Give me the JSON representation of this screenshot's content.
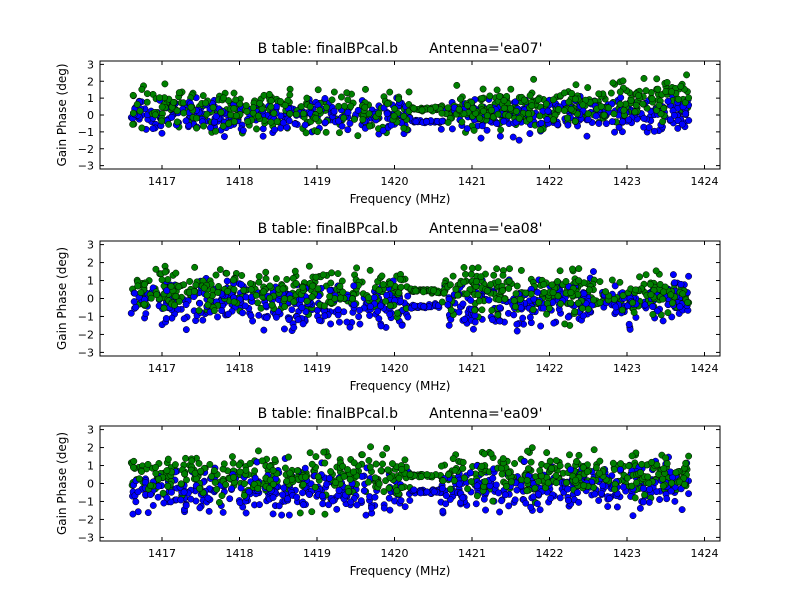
{
  "figure": {
    "colors": {
      "blue": "#0000ff",
      "green": "#008000",
      "edge": "#000000"
    }
  },
  "chart_data": [
    {
      "type": "scatter",
      "title": "B table: finalBPcal.b       Antenna='ea07'",
      "xlabel": "Frequency (MHz)",
      "ylabel": "Gain Phase (deg)",
      "xlim": [
        1416.2,
        1424.2
      ],
      "ylim": [
        -3.2,
        3.2
      ],
      "xticks": [
        1417,
        1418,
        1419,
        1420,
        1421,
        1422,
        1423,
        1424
      ],
      "yticks": [
        -3,
        -2,
        -1,
        0,
        1,
        2,
        3
      ],
      "grid": false,
      "legend": "none",
      "frequency_range": [
        1416.6,
        1423.8
      ],
      "flagged_gap": [
        1420.2,
        1420.6
      ],
      "series": [
        {
          "color": "#0000ff",
          "mean_phase_deg": 0.0,
          "scatter_deg": 0.5,
          "trend": [
            0.1,
            -0.1,
            0.2
          ],
          "max_abs_deg": 1.6
        },
        {
          "color": "#008000",
          "mean_phase_deg": 0.2,
          "scatter_deg": 0.6,
          "trend": [
            0.4,
            0.0,
            0.9
          ],
          "max_abs_deg": 2.4
        }
      ]
    },
    {
      "type": "scatter",
      "title": "B table: finalBPcal.b       Antenna='ea08'",
      "xlabel": "Frequency (MHz)",
      "ylabel": "Gain Phase (deg)",
      "xlim": [
        1416.2,
        1424.2
      ],
      "ylim": [
        -3.2,
        3.2
      ],
      "xticks": [
        1417,
        1418,
        1419,
        1420,
        1421,
        1422,
        1423,
        1424
      ],
      "yticks": [
        -3,
        -2,
        -1,
        0,
        1,
        2,
        3
      ],
      "grid": false,
      "legend": "none",
      "frequency_range": [
        1416.6,
        1423.8
      ],
      "flagged_gap": [
        1420.2,
        1420.6
      ],
      "series": [
        {
          "color": "#0000ff",
          "mean_phase_deg": -0.1,
          "scatter_deg": 0.6,
          "trend": [
            0.0,
            -0.3,
            0.0
          ],
          "max_abs_deg": 1.9
        },
        {
          "color": "#008000",
          "mean_phase_deg": 0.1,
          "scatter_deg": 0.6,
          "trend": [
            0.2,
            0.3,
            0.0
          ],
          "max_abs_deg": 1.8
        }
      ]
    },
    {
      "type": "scatter",
      "title": "B table: finalBPcal.b       Antenna='ea09'",
      "xlabel": "Frequency (MHz)",
      "ylabel": "Gain Phase (deg)",
      "xlim": [
        1416.2,
        1424.2
      ],
      "ylim": [
        -3.2,
        3.2
      ],
      "xticks": [
        1417,
        1418,
        1419,
        1420,
        1421,
        1422,
        1423,
        1424
      ],
      "yticks": [
        -3,
        -2,
        -1,
        0,
        1,
        2,
        3
      ],
      "grid": false,
      "legend": "none",
      "frequency_range": [
        1416.6,
        1423.8
      ],
      "flagged_gap": [
        1420.2,
        1420.6
      ],
      "series": [
        {
          "color": "#0000ff",
          "mean_phase_deg": -0.1,
          "scatter_deg": 0.6,
          "trend": [
            -0.2,
            -0.3,
            0.0
          ],
          "max_abs_deg": 1.8
        },
        {
          "color": "#008000",
          "mean_phase_deg": 0.2,
          "scatter_deg": 0.6,
          "trend": [
            0.1,
            0.3,
            0.3
          ],
          "max_abs_deg": 2.3
        }
      ]
    }
  ]
}
